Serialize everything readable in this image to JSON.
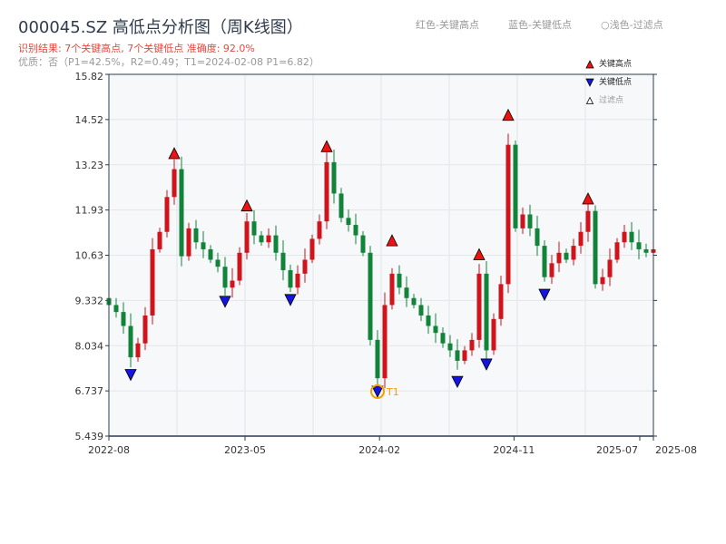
{
  "title": "000045.SZ 高低点分析图（周K线图）",
  "subtitle_result": "识别结果: 7个关键高点, 7个关键低点  准确度: 92.0%",
  "subtitle_quality": "优质：否（P1=42.5%，R2=0.49；T1=2024-02-08 P1=6.82）",
  "top_legend": [
    "红色-关键高点",
    "蓝色-关键低点",
    "○浅色-过滤点"
  ],
  "colors": {
    "up": "#d0141c",
    "down": "#11843a",
    "high_marker": "#ee1111",
    "low_marker": "#1515e0",
    "t1": "#f5a000",
    "plot_bg": "#f6f8fa"
  },
  "chart_data": {
    "type": "candlestick",
    "title": "000045.SZ 高低点分析图（周K线图）",
    "ylim": [
      5.439,
      15.82
    ],
    "yticks": [
      "15.82",
      "14.52",
      "13.23",
      "11.93",
      "10.63",
      "9.332",
      "8.034",
      "6.737",
      "5.439"
    ],
    "xticks": [
      {
        "label": "2022-08",
        "pos": 0
      },
      {
        "label": "2023-05",
        "pos": 0.25
      },
      {
        "label": "2024-02",
        "pos": 0.497
      },
      {
        "label": "2024-11",
        "pos": 0.744
      },
      {
        "label": "2025-07",
        "pos": 0.975
      },
      {
        "label": "2025-08",
        "pos": 1
      }
    ],
    "grid": true,
    "closes": [
      9.2,
      9.0,
      8.6,
      7.7,
      8.1,
      8.9,
      10.8,
      11.3,
      12.3,
      13.1,
      10.6,
      11.4,
      11.0,
      10.8,
      10.5,
      10.3,
      9.7,
      9.9,
      10.7,
      11.6,
      11.2,
      11.0,
      11.2,
      10.7,
      10.2,
      9.7,
      10.1,
      10.5,
      11.1,
      11.6,
      13.3,
      12.4,
      11.7,
      11.5,
      11.2,
      10.7,
      8.2,
      7.1,
      9.2,
      10.1,
      9.7,
      9.4,
      9.2,
      8.9,
      8.6,
      8.4,
      8.1,
      7.9,
      7.6,
      7.9,
      8.2,
      10.1,
      7.9,
      8.8,
      9.8,
      13.8,
      11.4,
      11.8,
      11.4,
      10.9,
      10.0,
      10.4,
      10.7,
      10.5,
      10.9,
      11.3,
      11.9,
      9.8,
      10.0,
      10.5,
      11.0,
      11.3,
      11.0,
      10.8,
      10.7,
      10.8
    ],
    "key_highs": [
      {
        "i": 9,
        "v": 13.4
      },
      {
        "i": 19,
        "v": 11.9
      },
      {
        "i": 30,
        "v": 13.6
      },
      {
        "i": 39,
        "v": 10.9
      },
      {
        "i": 51,
        "v": 10.5
      },
      {
        "i": 55,
        "v": 14.5
      },
      {
        "i": 66,
        "v": 12.1
      }
    ],
    "key_lows": [
      {
        "i": 3,
        "v": 7.3
      },
      {
        "i": 16,
        "v": 9.4
      },
      {
        "i": 25,
        "v": 9.45
      },
      {
        "i": 37,
        "v": 6.82
      },
      {
        "i": 48,
        "v": 7.1
      },
      {
        "i": 52,
        "v": 7.6
      },
      {
        "i": 60,
        "v": 9.6
      }
    ],
    "t1": {
      "i": 37,
      "v": 6.82,
      "label": "T1"
    },
    "legend": [
      "关键高点",
      "关键低点",
      "过滤点"
    ],
    "legend_placement": "top-right"
  }
}
